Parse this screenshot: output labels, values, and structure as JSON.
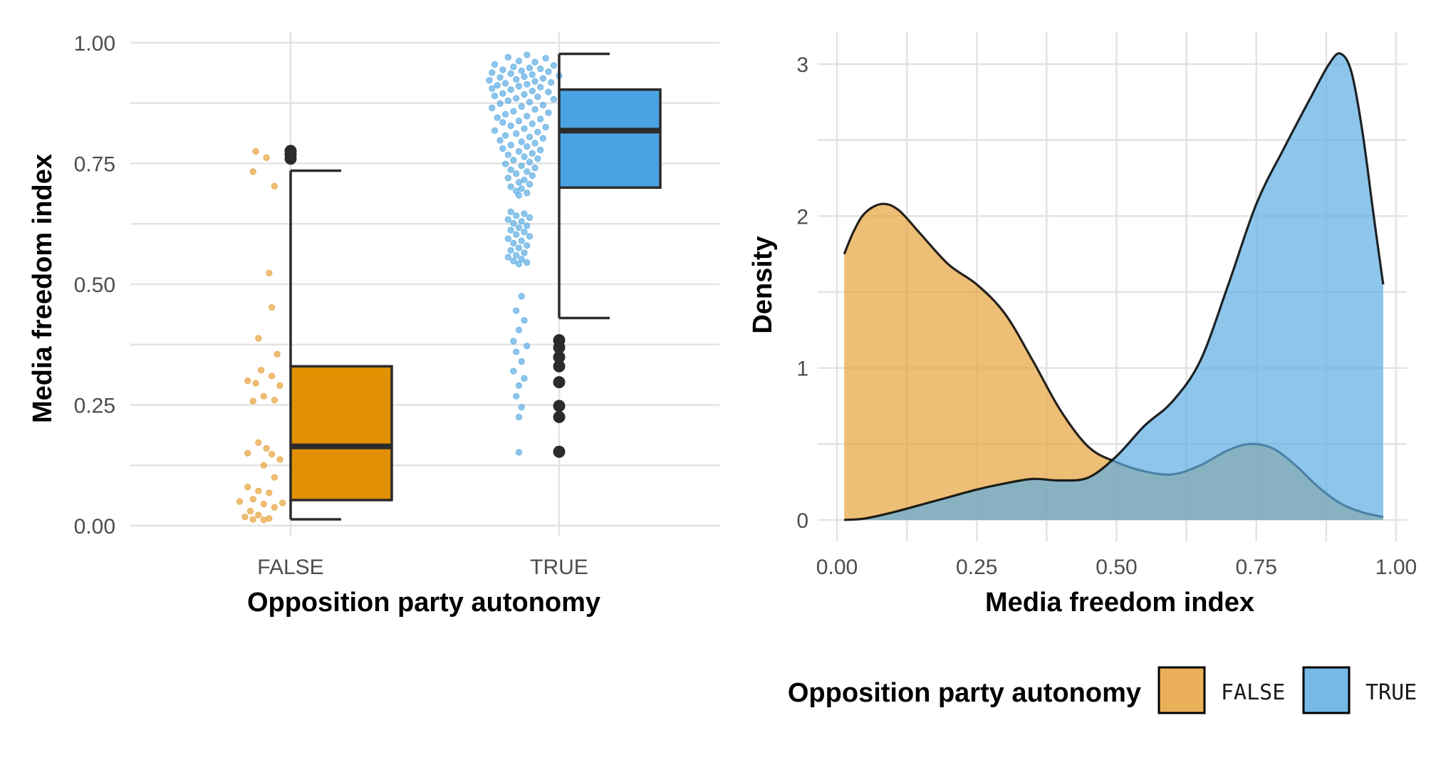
{
  "chart_data": [
    {
      "type": "box",
      "xlabel": "Opposition party autonomy",
      "ylabel": "Media freedom index",
      "ylim": [
        0,
        1
      ],
      "yticks": [
        0,
        0.25,
        0.5,
        0.75,
        1.0
      ],
      "ytick_labels": [
        "0.00",
        "0.25",
        "0.50",
        "0.75",
        "1.00"
      ],
      "categories": [
        "FALSE",
        "TRUE"
      ],
      "grid": true,
      "groups": [
        {
          "category": "FALSE",
          "color": "#E09000",
          "jitter_color": "#E6A23C",
          "whisker_low": 0.013,
          "q1": 0.053,
          "median": 0.164,
          "q3": 0.33,
          "whisker_high": 0.735,
          "outliers": [
            0.76,
            0.769,
            0.776
          ],
          "points": [
            {
              "x": -0.13,
              "y": 0.775
            },
            {
              "x": -0.09,
              "y": 0.762
            },
            {
              "x": -0.14,
              "y": 0.733
            },
            {
              "x": -0.06,
              "y": 0.703
            },
            {
              "x": -0.08,
              "y": 0.523
            },
            {
              "x": -0.07,
              "y": 0.452
            },
            {
              "x": -0.12,
              "y": 0.388
            },
            {
              "x": -0.05,
              "y": 0.355
            },
            {
              "x": -0.11,
              "y": 0.322
            },
            {
              "x": -0.07,
              "y": 0.31
            },
            {
              "x": -0.16,
              "y": 0.3
            },
            {
              "x": -0.13,
              "y": 0.295
            },
            {
              "x": -0.04,
              "y": 0.29
            },
            {
              "x": -0.1,
              "y": 0.268
            },
            {
              "x": -0.06,
              "y": 0.26
            },
            {
              "x": -0.14,
              "y": 0.258
            },
            {
              "x": -0.12,
              "y": 0.172
            },
            {
              "x": -0.09,
              "y": 0.16
            },
            {
              "x": -0.16,
              "y": 0.15
            },
            {
              "x": -0.07,
              "y": 0.148
            },
            {
              "x": -0.04,
              "y": 0.137
            },
            {
              "x": -0.1,
              "y": 0.125
            },
            {
              "x": -0.06,
              "y": 0.1
            },
            {
              "x": -0.16,
              "y": 0.08
            },
            {
              "x": -0.12,
              "y": 0.072
            },
            {
              "x": -0.08,
              "y": 0.068
            },
            {
              "x": -0.14,
              "y": 0.055
            },
            {
              "x": -0.19,
              "y": 0.05
            },
            {
              "x": -0.03,
              "y": 0.047
            },
            {
              "x": -0.1,
              "y": 0.045
            },
            {
              "x": -0.06,
              "y": 0.038
            },
            {
              "x": -0.15,
              "y": 0.03
            },
            {
              "x": -0.12,
              "y": 0.022
            },
            {
              "x": -0.17,
              "y": 0.018
            },
            {
              "x": -0.08,
              "y": 0.015
            },
            {
              "x": -0.14,
              "y": 0.013
            },
            {
              "x": -0.1,
              "y": 0.012
            }
          ]
        },
        {
          "category": "TRUE",
          "color": "#4AA3E2",
          "jitter_color": "#5DADE2",
          "whisker_low": 0.43,
          "q1": 0.7,
          "median": 0.818,
          "q3": 0.903,
          "whisker_high": 0.977,
          "outliers": [
            0.153,
            0.225,
            0.248,
            0.297,
            0.33,
            0.349,
            0.369,
            0.384
          ],
          "points": [
            {
              "x": -0.12,
              "y": 0.975
            },
            {
              "x": -0.19,
              "y": 0.97
            },
            {
              "x": -0.05,
              "y": 0.968
            },
            {
              "x": -0.15,
              "y": 0.962
            },
            {
              "x": -0.09,
              "y": 0.96
            },
            {
              "x": -0.24,
              "y": 0.955
            },
            {
              "x": -0.02,
              "y": 0.953
            },
            {
              "x": -0.17,
              "y": 0.95
            },
            {
              "x": -0.11,
              "y": 0.948
            },
            {
              "x": -0.07,
              "y": 0.946
            },
            {
              "x": -0.21,
              "y": 0.944
            },
            {
              "x": -0.14,
              "y": 0.942
            },
            {
              "x": -0.04,
              "y": 0.94
            },
            {
              "x": -0.25,
              "y": 0.938
            },
            {
              "x": -0.18,
              "y": 0.936
            },
            {
              "x": -0.1,
              "y": 0.934
            },
            {
              "x": 0.0,
              "y": 0.932
            },
            {
              "x": -0.13,
              "y": 0.93
            },
            {
              "x": -0.22,
              "y": 0.928
            },
            {
              "x": -0.06,
              "y": 0.926
            },
            {
              "x": -0.16,
              "y": 0.924
            },
            {
              "x": -0.26,
              "y": 0.922
            },
            {
              "x": -0.09,
              "y": 0.92
            },
            {
              "x": -0.03,
              "y": 0.918
            },
            {
              "x": -0.2,
              "y": 0.916
            },
            {
              "x": -0.12,
              "y": 0.914
            },
            {
              "x": -0.23,
              "y": 0.912
            },
            {
              "x": -0.15,
              "y": 0.91
            },
            {
              "x": -0.07,
              "y": 0.908
            },
            {
              "x": -0.25,
              "y": 0.905
            },
            {
              "x": -0.18,
              "y": 0.903
            },
            {
              "x": -0.1,
              "y": 0.9
            },
            {
              "x": -0.04,
              "y": 0.898
            },
            {
              "x": -0.21,
              "y": 0.895
            },
            {
              "x": -0.13,
              "y": 0.893
            },
            {
              "x": -0.24,
              "y": 0.89
            },
            {
              "x": -0.08,
              "y": 0.888
            },
            {
              "x": -0.16,
              "y": 0.885
            },
            {
              "x": -0.02,
              "y": 0.883
            },
            {
              "x": -0.19,
              "y": 0.88
            },
            {
              "x": -0.11,
              "y": 0.877
            },
            {
              "x": -0.22,
              "y": 0.874
            },
            {
              "x": -0.06,
              "y": 0.871
            },
            {
              "x": -0.14,
              "y": 0.868
            },
            {
              "x": -0.25,
              "y": 0.865
            },
            {
              "x": -0.09,
              "y": 0.862
            },
            {
              "x": -0.17,
              "y": 0.858
            },
            {
              "x": -0.04,
              "y": 0.855
            },
            {
              "x": -0.2,
              "y": 0.852
            },
            {
              "x": -0.12,
              "y": 0.848
            },
            {
              "x": -0.23,
              "y": 0.845
            },
            {
              "x": -0.07,
              "y": 0.842
            },
            {
              "x": -0.15,
              "y": 0.838
            },
            {
              "x": -0.21,
              "y": 0.835
            },
            {
              "x": -0.1,
              "y": 0.832
            },
            {
              "x": -0.18,
              "y": 0.828
            },
            {
              "x": -0.05,
              "y": 0.825
            },
            {
              "x": -0.13,
              "y": 0.822
            },
            {
              "x": -0.24,
              "y": 0.818
            },
            {
              "x": -0.08,
              "y": 0.815
            },
            {
              "x": -0.16,
              "y": 0.812
            },
            {
              "x": -0.2,
              "y": 0.808
            },
            {
              "x": -0.11,
              "y": 0.805
            },
            {
              "x": -0.06,
              "y": 0.802
            },
            {
              "x": -0.22,
              "y": 0.798
            },
            {
              "x": -0.14,
              "y": 0.795
            },
            {
              "x": -0.09,
              "y": 0.792
            },
            {
              "x": -0.18,
              "y": 0.788
            },
            {
              "x": -0.12,
              "y": 0.785
            },
            {
              "x": -0.21,
              "y": 0.781
            },
            {
              "x": -0.07,
              "y": 0.778
            },
            {
              "x": -0.15,
              "y": 0.775
            },
            {
              "x": -0.1,
              "y": 0.771
            },
            {
              "x": -0.19,
              "y": 0.768
            },
            {
              "x": -0.13,
              "y": 0.764
            },
            {
              "x": -0.08,
              "y": 0.76
            },
            {
              "x": -0.17,
              "y": 0.757
            },
            {
              "x": -0.11,
              "y": 0.753
            },
            {
              "x": -0.2,
              "y": 0.749
            },
            {
              "x": -0.14,
              "y": 0.745
            },
            {
              "x": -0.09,
              "y": 0.741
            },
            {
              "x": -0.18,
              "y": 0.737
            },
            {
              "x": -0.12,
              "y": 0.733
            },
            {
              "x": -0.16,
              "y": 0.729
            },
            {
              "x": -0.1,
              "y": 0.725
            },
            {
              "x": -0.19,
              "y": 0.72
            },
            {
              "x": -0.13,
              "y": 0.716
            },
            {
              "x": -0.15,
              "y": 0.711
            },
            {
              "x": -0.11,
              "y": 0.707
            },
            {
              "x": -0.18,
              "y": 0.702
            },
            {
              "x": -0.14,
              "y": 0.698
            },
            {
              "x": -0.16,
              "y": 0.693
            },
            {
              "x": -0.12,
              "y": 0.689
            },
            {
              "x": -0.15,
              "y": 0.684
            },
            {
              "x": -0.18,
              "y": 0.65
            },
            {
              "x": -0.13,
              "y": 0.646
            },
            {
              "x": -0.16,
              "y": 0.642
            },
            {
              "x": -0.11,
              "y": 0.638
            },
            {
              "x": -0.19,
              "y": 0.634
            },
            {
              "x": -0.14,
              "y": 0.63
            },
            {
              "x": -0.17,
              "y": 0.626
            },
            {
              "x": -0.12,
              "y": 0.621
            },
            {
              "x": -0.15,
              "y": 0.617
            },
            {
              "x": -0.18,
              "y": 0.612
            },
            {
              "x": -0.13,
              "y": 0.608
            },
            {
              "x": -0.16,
              "y": 0.603
            },
            {
              "x": -0.11,
              "y": 0.599
            },
            {
              "x": -0.19,
              "y": 0.594
            },
            {
              "x": -0.14,
              "y": 0.59
            },
            {
              "x": -0.17,
              "y": 0.585
            },
            {
              "x": -0.12,
              "y": 0.58
            },
            {
              "x": -0.15,
              "y": 0.575
            },
            {
              "x": -0.18,
              "y": 0.57
            },
            {
              "x": -0.13,
              "y": 0.565
            },
            {
              "x": -0.16,
              "y": 0.56
            },
            {
              "x": -0.19,
              "y": 0.556
            },
            {
              "x": -0.14,
              "y": 0.552
            },
            {
              "x": -0.17,
              "y": 0.548
            },
            {
              "x": -0.12,
              "y": 0.545
            },
            {
              "x": -0.15,
              "y": 0.542
            },
            {
              "x": -0.14,
              "y": 0.475
            },
            {
              "x": -0.16,
              "y": 0.445
            },
            {
              "x": -0.13,
              "y": 0.425
            },
            {
              "x": -0.15,
              "y": 0.405
            },
            {
              "x": -0.17,
              "y": 0.382
            },
            {
              "x": -0.12,
              "y": 0.372
            },
            {
              "x": -0.16,
              "y": 0.36
            },
            {
              "x": -0.14,
              "y": 0.34
            },
            {
              "x": -0.17,
              "y": 0.32
            },
            {
              "x": -0.13,
              "y": 0.305
            },
            {
              "x": -0.15,
              "y": 0.29
            },
            {
              "x": -0.16,
              "y": 0.268
            },
            {
              "x": -0.14,
              "y": 0.245
            },
            {
              "x": -0.15,
              "y": 0.225
            },
            {
              "x": -0.15,
              "y": 0.152
            }
          ]
        }
      ]
    },
    {
      "type": "area",
      "xlabel": "Media freedom index",
      "ylabel": "Density",
      "xlim": [
        0,
        1
      ],
      "ylim": [
        0,
        3.1
      ],
      "xticks": [
        0,
        0.25,
        0.5,
        0.75,
        1.0
      ],
      "xtick_labels": [
        "0.00",
        "0.25",
        "0.50",
        "0.75",
        "1.00"
      ],
      "yticks": [
        0,
        1,
        2,
        3
      ],
      "ytick_labels": [
        "0",
        "1",
        "2",
        "3"
      ],
      "grid": true,
      "legend": {
        "title": "Opposition party autonomy",
        "position": "bottom",
        "entries": [
          {
            "label": "FALSE",
            "color": "#E6A23C"
          },
          {
            "label": "TRUE",
            "color": "#5DADE2"
          }
        ]
      },
      "series": [
        {
          "name": "FALSE",
          "color": "#E6A23C",
          "x": [
            0.013,
            0.03,
            0.05,
            0.08,
            0.11,
            0.15,
            0.2,
            0.25,
            0.3,
            0.35,
            0.4,
            0.45,
            0.5,
            0.55,
            0.6,
            0.65,
            0.7,
            0.74,
            0.78,
            0.82,
            0.86,
            0.9,
            0.94,
            0.977
          ],
          "y": [
            1.75,
            1.9,
            2.02,
            2.08,
            2.04,
            1.88,
            1.68,
            1.55,
            1.36,
            1.05,
            0.72,
            0.48,
            0.38,
            0.32,
            0.3,
            0.36,
            0.46,
            0.5,
            0.47,
            0.36,
            0.22,
            0.11,
            0.05,
            0.02
          ]
        },
        {
          "name": "TRUE",
          "color": "#5DADE2",
          "x": [
            0.013,
            0.05,
            0.1,
            0.15,
            0.2,
            0.25,
            0.3,
            0.35,
            0.4,
            0.45,
            0.5,
            0.55,
            0.6,
            0.65,
            0.7,
            0.75,
            0.8,
            0.85,
            0.88,
            0.9,
            0.92,
            0.94,
            0.96,
            0.977
          ],
          "y": [
            0.0,
            0.01,
            0.05,
            0.1,
            0.15,
            0.2,
            0.24,
            0.27,
            0.26,
            0.28,
            0.42,
            0.62,
            0.78,
            1.05,
            1.55,
            2.08,
            2.45,
            2.8,
            3.0,
            3.07,
            2.95,
            2.55,
            2.0,
            1.55
          ]
        }
      ]
    }
  ]
}
